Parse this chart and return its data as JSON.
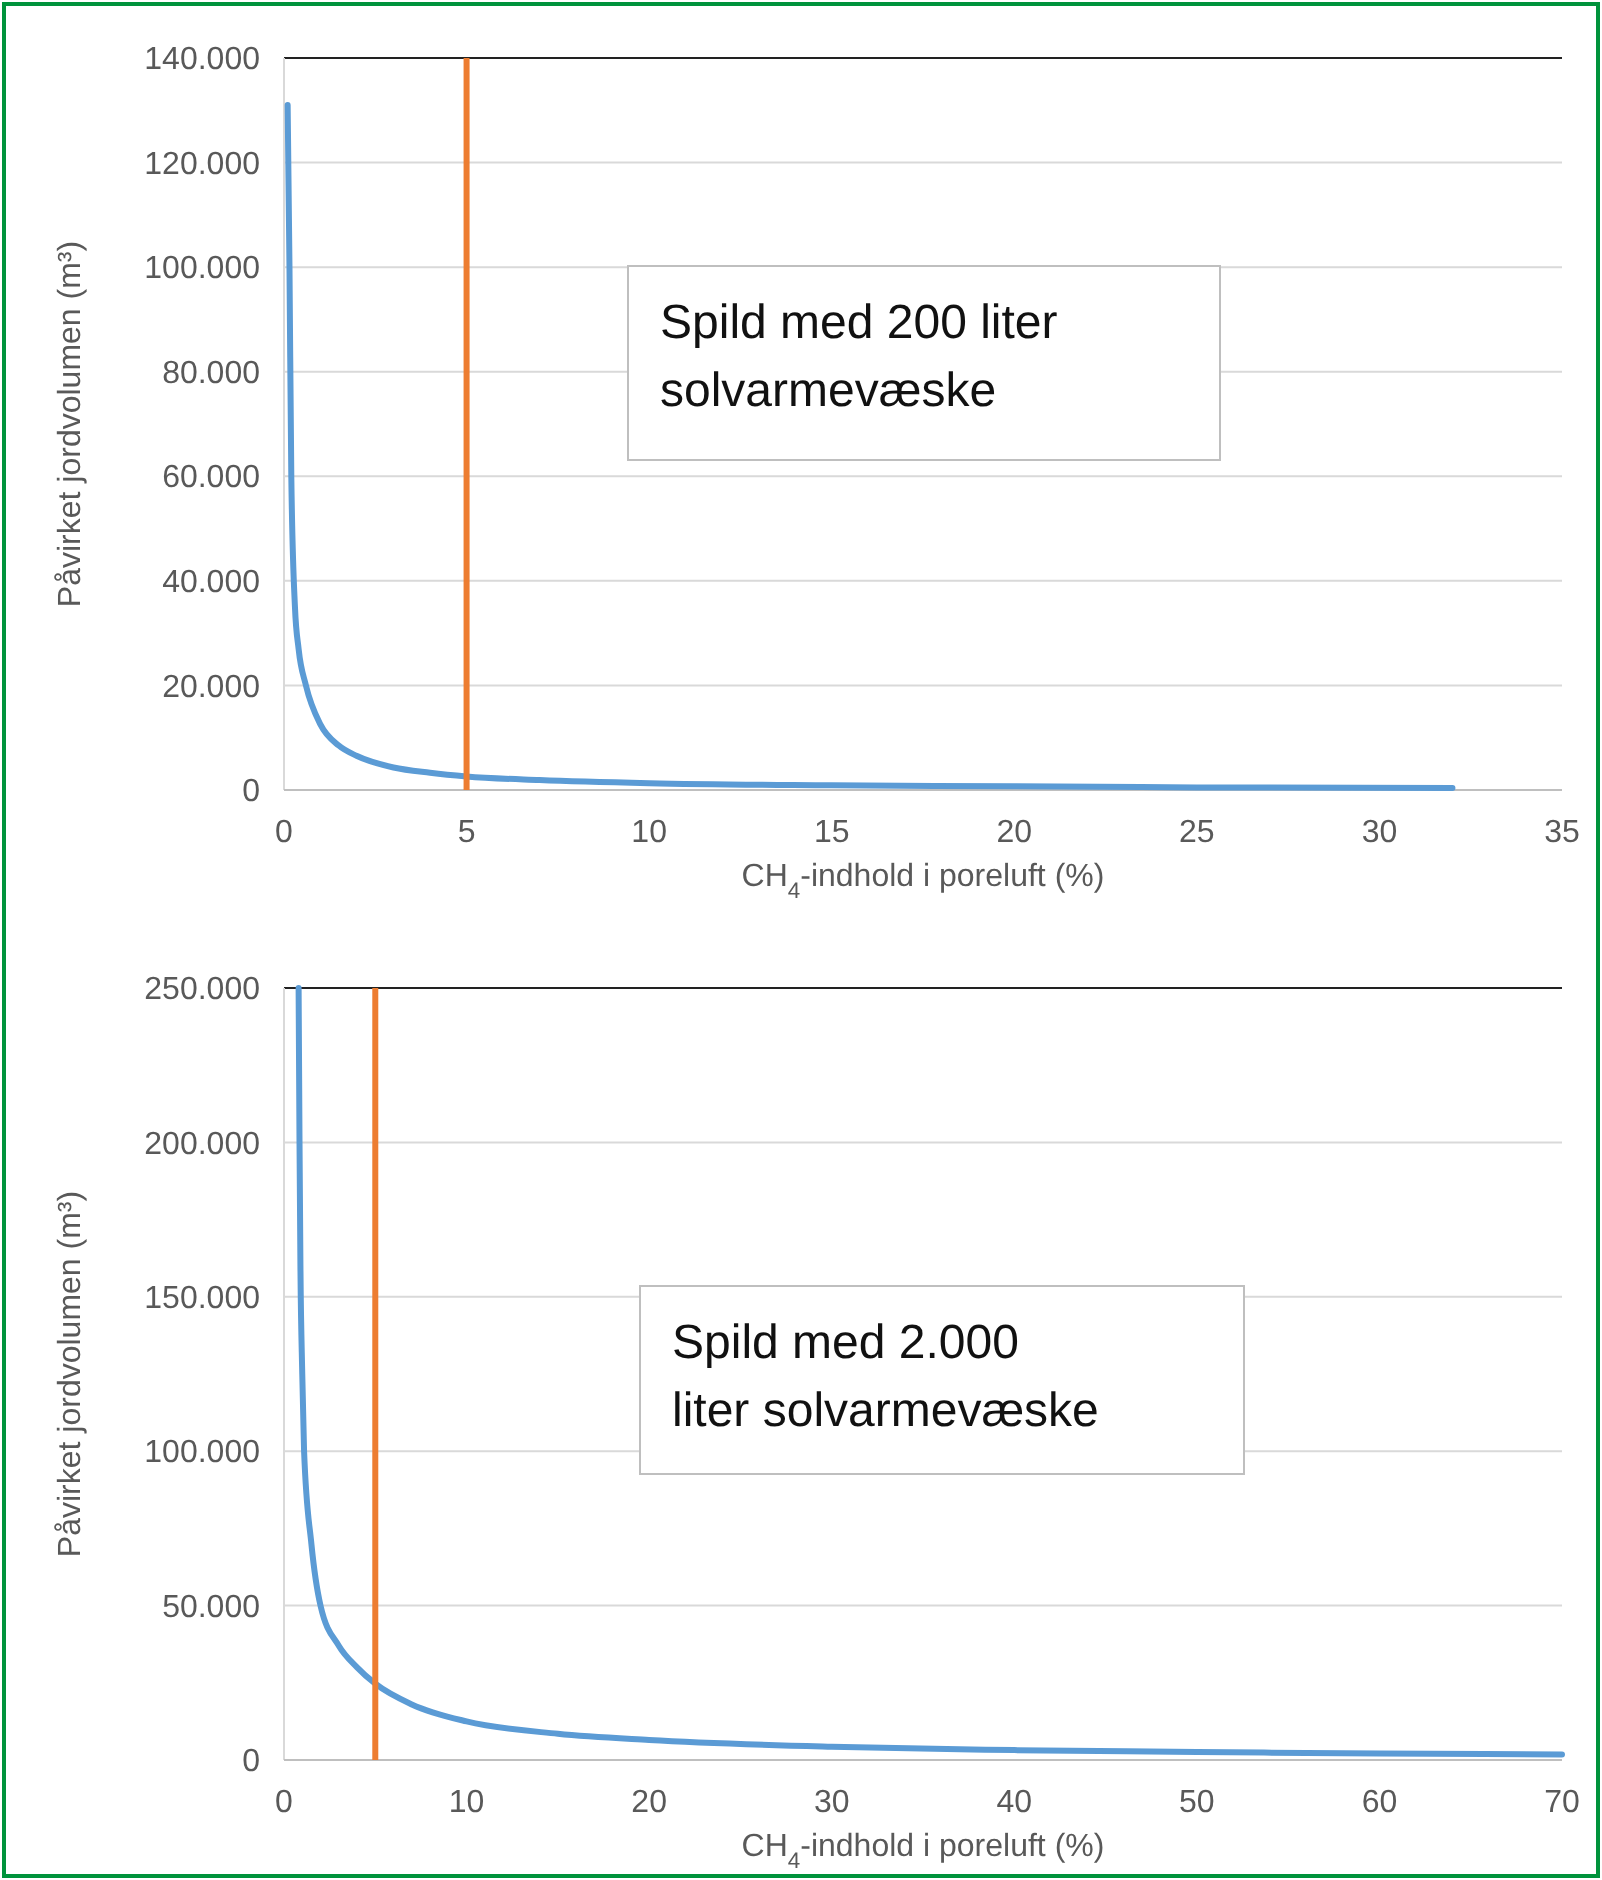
{
  "chart_data": [
    {
      "type": "line",
      "xlabel": "CH$_{4}$-indhold i poreluft (%)",
      "ylabel": "Påvirket jordvolumen (m³)",
      "annotations": [
        "Spild med 200 liter solvarmevæske"
      ],
      "series": [
        {
          "color": "#5b9bd5",
          "x": [
            0.1,
            0.15,
            0.2,
            0.3,
            0.4,
            0.6,
            1,
            1.5,
            2,
            3,
            4,
            5,
            7,
            10,
            15,
            20,
            25,
            32
          ],
          "values": [
            131000,
            100000,
            60000,
            35000,
            27000,
            20000,
            12500,
            8500,
            6500,
            4300,
            3300,
            2600,
            1900,
            1300,
            900,
            700,
            500,
            400
          ]
        }
      ],
      "xlim": [
        0,
        35
      ],
      "xticks": [
        0,
        5,
        10,
        15,
        20,
        25,
        30,
        35
      ],
      "ylim": [
        0,
        140000
      ],
      "yticks": [
        {
          "value": 0,
          "label": "0"
        },
        {
          "value": 20000,
          "label": "20.000"
        },
        {
          "value": 40000,
          "label": "40.000"
        },
        {
          "value": 60000,
          "label": "60.000"
        },
        {
          "value": 80000,
          "label": "80.000"
        },
        {
          "value": 100000,
          "label": "100.000"
        },
        {
          "value": 120000,
          "label": "120.000"
        },
        {
          "value": 140000,
          "label": "140.000"
        }
      ],
      "grid": "y",
      "ref_lines": [
        {
          "axis": "x",
          "value": 5,
          "color": "#ed7d31"
        }
      ]
    },
    {
      "type": "line",
      "xlabel": "CH$_{4}$-indhold i poreluft (%)",
      "ylabel": "Påvirket jordvolumen (m³)",
      "annotations": [
        "Spild med 2.000 liter solvarmevæske"
      ],
      "series": [
        {
          "color": "#5b9bd5",
          "x": [
            0.8,
            0.85,
            0.9,
            1,
            1.1,
            1.5,
            2,
            3,
            4,
            5,
            7,
            10,
            15,
            20,
            30,
            40,
            50,
            60,
            70
          ],
          "values": [
            250000,
            200000,
            160000,
            125000,
            100000,
            70000,
            50000,
            37000,
            30000,
            24700,
            18000,
            12500,
            8500,
            6500,
            4300,
            3200,
            2600,
            2100,
            1800
          ]
        }
      ],
      "xlim": [
        0,
        70
      ],
      "xticks": [
        0,
        10,
        20,
        30,
        40,
        50,
        60,
        70
      ],
      "ylim": [
        0,
        250000
      ],
      "yticks": [
        {
          "value": 0,
          "label": "0"
        },
        {
          "value": 50000,
          "label": "50.000"
        },
        {
          "value": 100000,
          "label": "100.000"
        },
        {
          "value": 150000,
          "label": "150.000"
        },
        {
          "value": 200000,
          "label": "200.000"
        },
        {
          "value": 250000,
          "label": "250.000"
        }
      ],
      "grid": "y",
      "ref_lines": [
        {
          "axis": "x",
          "value": 5,
          "color": "#ed7d31"
        }
      ]
    }
  ]
}
